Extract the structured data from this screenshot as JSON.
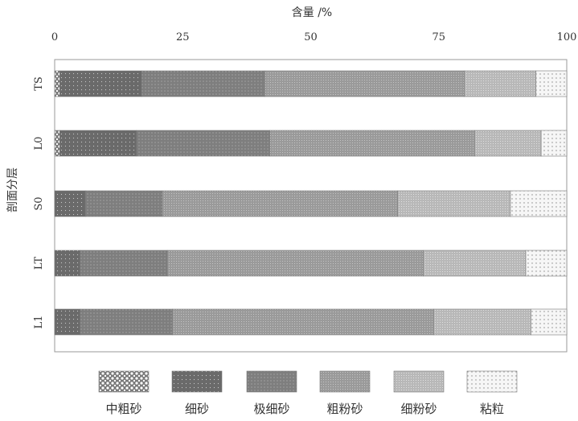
{
  "chart_data": {
    "type": "bar",
    "orientation": "horizontal",
    "stacked": true,
    "title": "",
    "xlabel": "含量 /%",
    "ylabel": "剖面分层",
    "xlim": [
      0,
      100
    ],
    "xticks": [
      "0",
      "25",
      "50",
      "75",
      "100"
    ],
    "x_axis_position": "top",
    "grid": false,
    "legend_position": "bottom",
    "categories": [
      "TS",
      "L0",
      "S0",
      "LT",
      "L1"
    ],
    "series": [
      {
        "name": "中粗砂",
        "color": "#dddddd",
        "pattern": "open-dots",
        "values": [
          1,
          1,
          0,
          0,
          0
        ]
      },
      {
        "name": "细砂",
        "color": "#6d6d6d",
        "pattern": "dense-dots",
        "values": [
          16,
          15,
          6,
          5,
          5
        ]
      },
      {
        "name": "极细砂",
        "color": "#808080",
        "pattern": "dots",
        "values": [
          24,
          26,
          15,
          17,
          18
        ]
      },
      {
        "name": "粗粉砂",
        "color": "#9b9b9b",
        "pattern": "fine",
        "values": [
          39,
          40,
          46,
          50,
          51
        ]
      },
      {
        "name": "细粉砂",
        "color": "#b9b9b9",
        "pattern": "fine",
        "values": [
          14,
          13,
          22,
          20,
          19
        ]
      },
      {
        "name": "粘粒",
        "color": "#f4f4f4",
        "pattern": "sparse-dots",
        "values": [
          6,
          5,
          11,
          8,
          7
        ]
      }
    ]
  }
}
